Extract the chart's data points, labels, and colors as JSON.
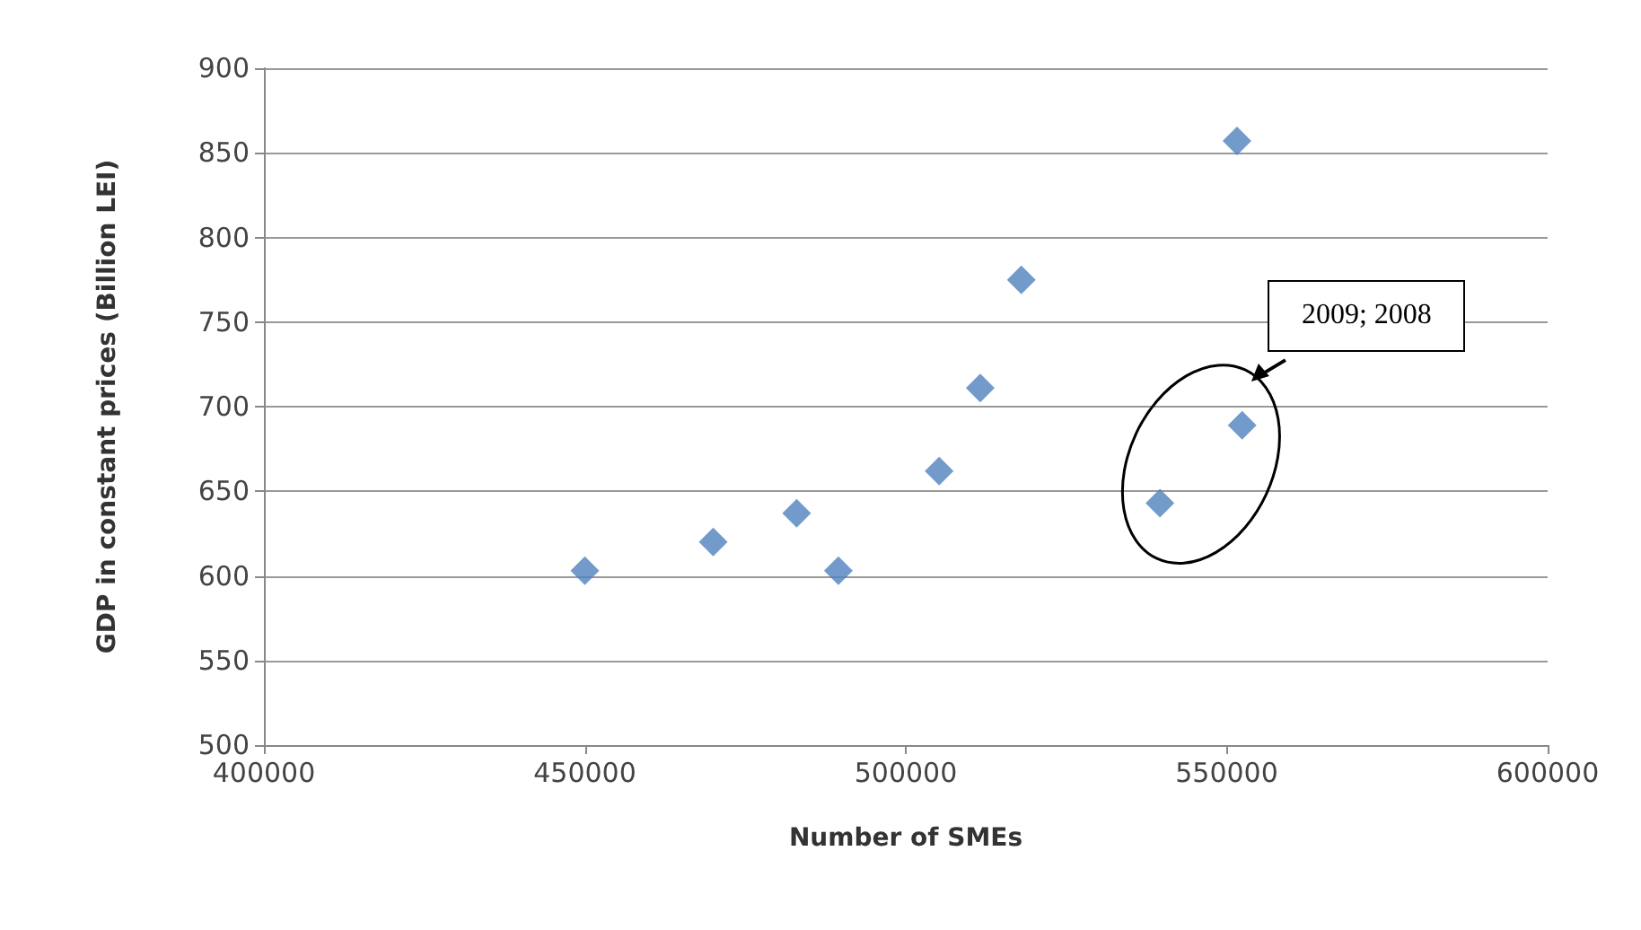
{
  "chart_data": {
    "type": "scatter",
    "xlabel": "Number of SMEs",
    "ylabel": "GDP in constant prices (Billion LEI)",
    "x": [
      450000,
      470000,
      483000,
      489500,
      505200,
      511600,
      518000,
      539600,
      551600,
      552400
    ],
    "values": [
      603,
      620,
      637,
      603,
      662,
      711,
      775,
      643,
      857,
      689
    ],
    "color": "#4f81bd",
    "marker": "diamond",
    "xlim": [
      400000,
      600000
    ],
    "xticks": [
      400000,
      450000,
      500000,
      550000,
      600000
    ],
    "ylim": [
      500,
      900
    ],
    "yticks": [
      500,
      550,
      600,
      650,
      700,
      750,
      800,
      850,
      900
    ],
    "grid": "y",
    "annotations": [
      "2009; 2008"
    ]
  }
}
